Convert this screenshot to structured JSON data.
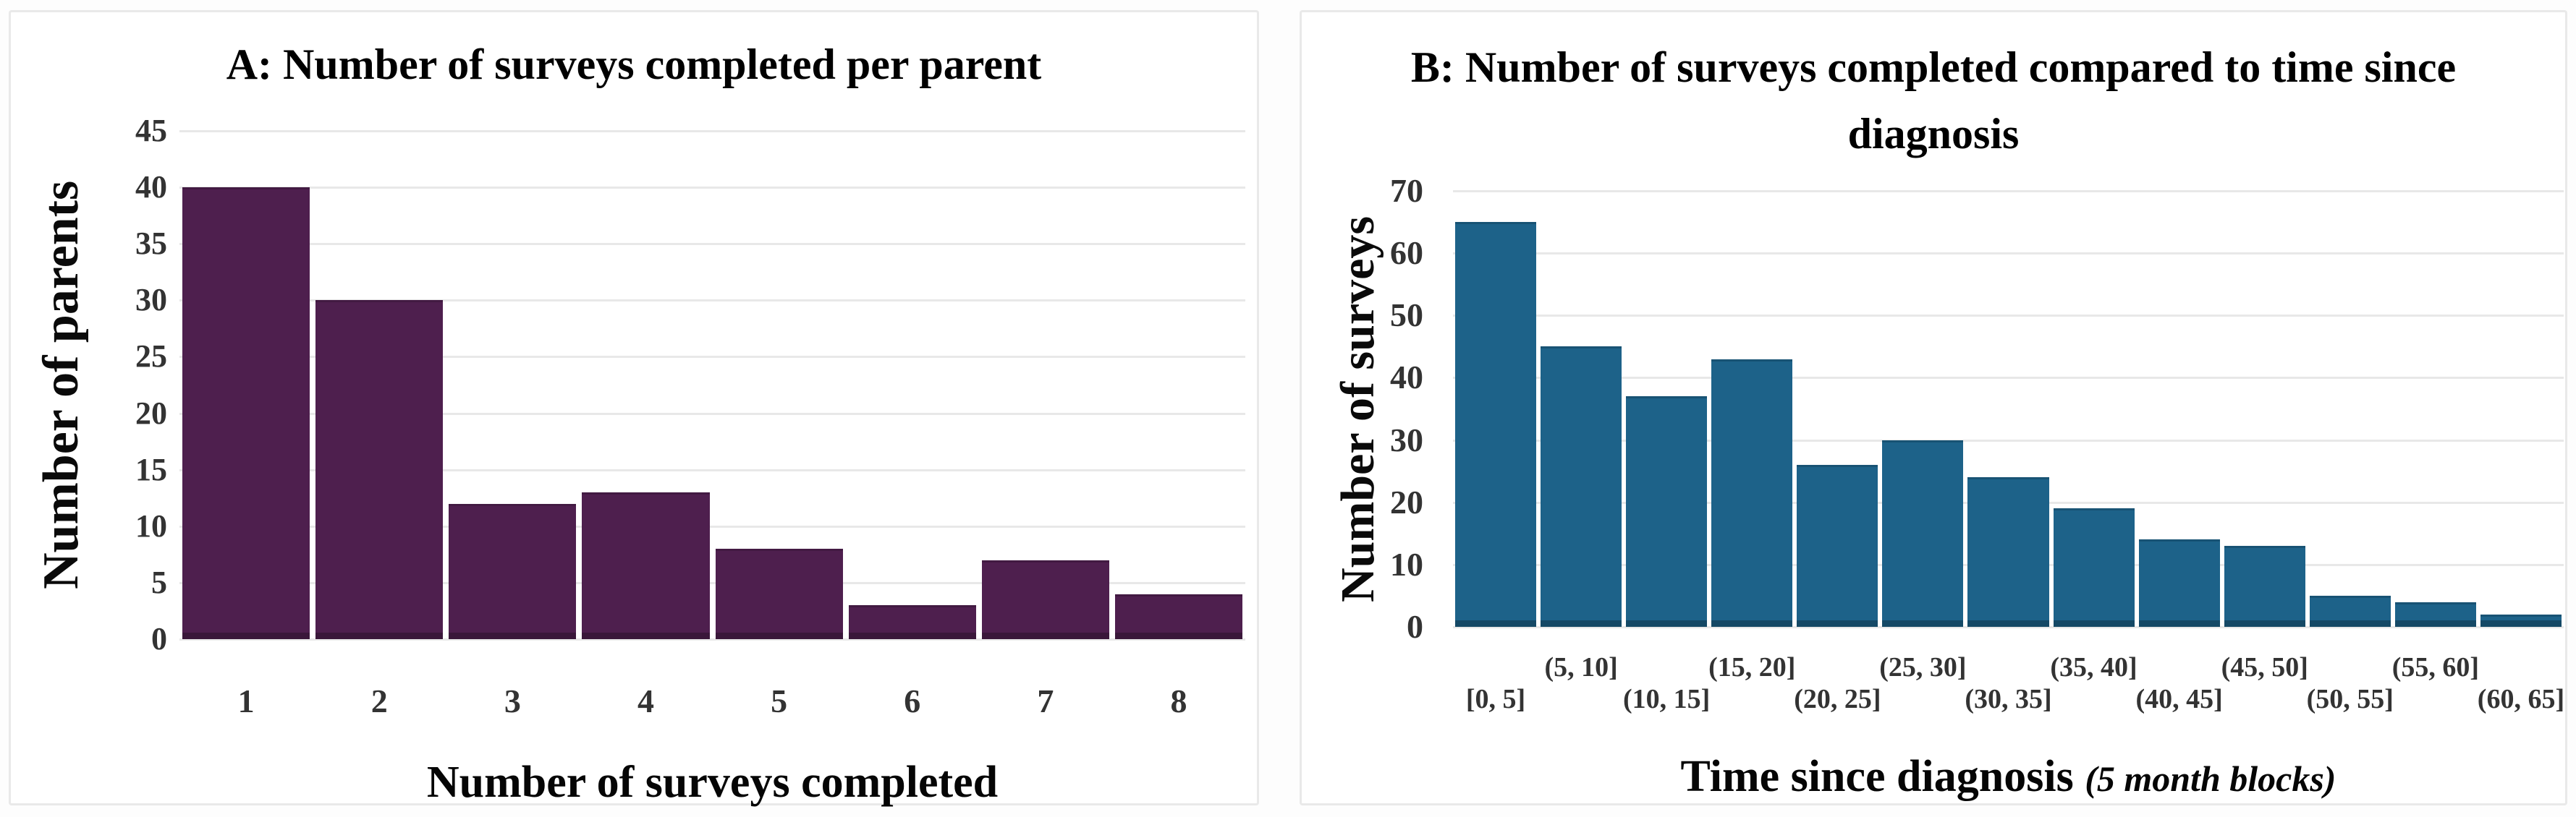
{
  "page": {
    "background": "#fdfdfd",
    "panel_border": "#e9e9e9",
    "gridline_color": "#e8e8e8"
  },
  "chart_data": [
    {
      "type": "bar",
      "panel_label": "A",
      "title": "A: Number of surveys completed per parent",
      "categories": [
        "1",
        "2",
        "3",
        "4",
        "5",
        "6",
        "7",
        "8"
      ],
      "values": [
        40,
        30,
        12,
        13,
        8,
        3,
        7,
        4
      ],
      "xlabel": "Number of surveys completed",
      "ylabel": "Number of parents",
      "ylim": [
        0,
        45
      ],
      "ytick_step": 5,
      "bar_color": "#4e1f4e",
      "grid": true,
      "legend": false,
      "x_labels_staggered": false
    },
    {
      "type": "bar",
      "panel_label": "B",
      "title": "B: Number of surveys completed compared to time since diagnosis",
      "categories": [
        "[0, 5]",
        "(5, 10]",
        "(10, 15]",
        "(15, 20]",
        "(20, 25]",
        "(25, 30]",
        "(30, 35]",
        "(35, 40]",
        "(40, 45]",
        "(45, 50]",
        "(50, 55]",
        "(55, 60]",
        "(60, 65]"
      ],
      "values": [
        65,
        45,
        37,
        43,
        26,
        30,
        24,
        19,
        14,
        13,
        5,
        4,
        2
      ],
      "xlabel": "Time since diagnosis",
      "xlabel_note": "(5 month blocks)",
      "ylabel": "Number of surveys",
      "ylim": [
        0,
        70
      ],
      "ytick_step": 10,
      "bar_color": "#1d6289",
      "grid": true,
      "legend": false,
      "x_labels_staggered": true
    }
  ]
}
